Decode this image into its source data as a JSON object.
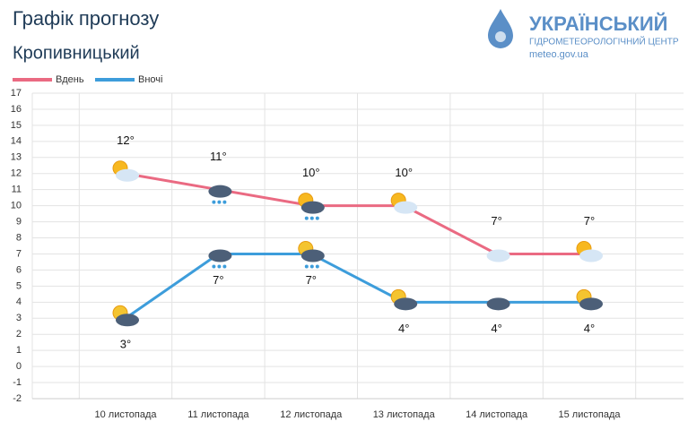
{
  "chart_data": {
    "type": "line",
    "title": "Графік прогнозу",
    "subtitle": "Кропивницький",
    "logo": {
      "title": "УКРАЇНСЬКИЙ",
      "subtitle": "ГІДРОМЕТЕОРОЛОГІЧНИЙ ЦЕНТР",
      "url": "meteo.gov.ua"
    },
    "categories": [
      "10 листопада",
      "11 листопада",
      "12 листопада",
      "13 листопада",
      "14 листопада",
      "15 листопада"
    ],
    "series": [
      {
        "name": "Вдень",
        "color": "#ea6a82",
        "values": [
          12,
          11,
          10,
          10,
          7,
          7
        ],
        "value_labels": [
          "12°",
          "11°",
          "10°",
          "10°",
          "7°",
          "7°"
        ]
      },
      {
        "name": "Вночі",
        "color": "#3d9ddb",
        "values": [
          3,
          7,
          7,
          4,
          4,
          4
        ],
        "value_labels": [
          "3°",
          "7°",
          "7°",
          "4°",
          "4°",
          "4°"
        ]
      }
    ],
    "ylim": [
      -2,
      17
    ],
    "yticks": [
      -2,
      -1,
      0,
      1,
      2,
      3,
      4,
      5,
      6,
      7,
      8,
      9,
      10,
      11,
      12,
      13,
      14,
      15,
      16,
      17
    ],
    "grid": true,
    "legend": "top-left"
  }
}
